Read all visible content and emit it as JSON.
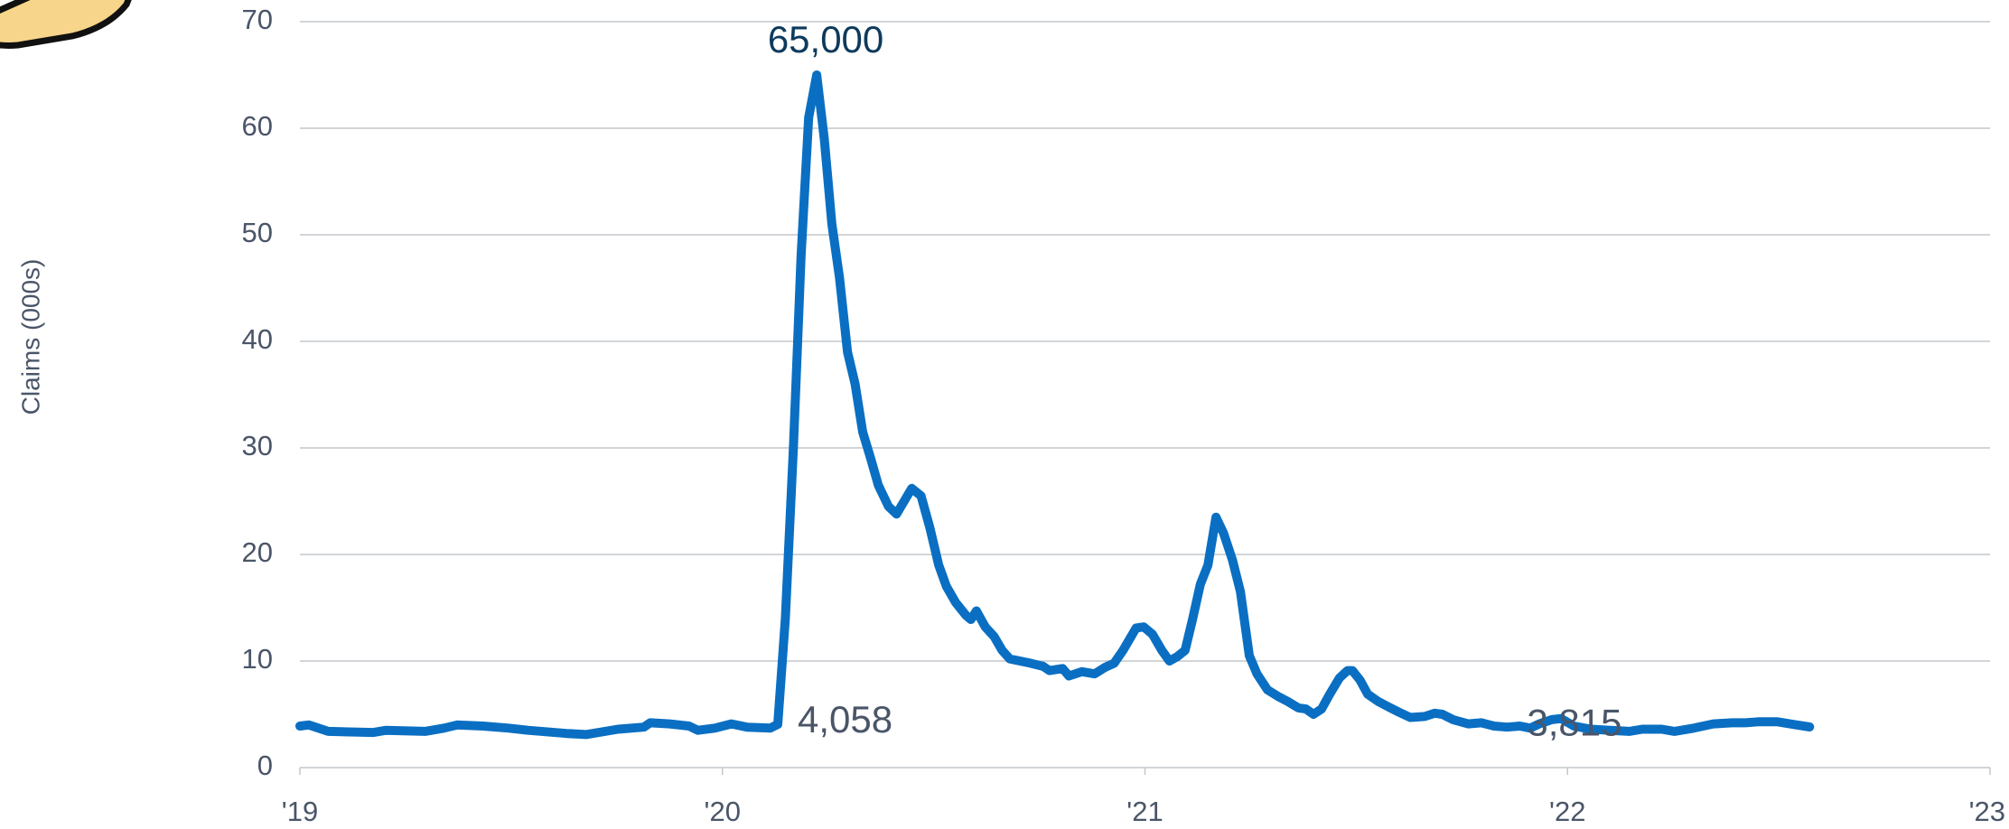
{
  "chart_data": {
    "type": "line",
    "ylabel": "Claims (000s)",
    "xlim": [
      2019,
      2023
    ],
    "xticks": [
      {
        "value": 2019,
        "label": "'19"
      },
      {
        "value": 2020,
        "label": "'20"
      },
      {
        "value": 2021,
        "label": "'21"
      },
      {
        "value": 2022,
        "label": "'22"
      },
      {
        "value": 2023,
        "label": "'23"
      }
    ],
    "ylim": [
      0,
      70
    ],
    "yticks": [
      0,
      10,
      20,
      30,
      40,
      50,
      60,
      70
    ],
    "grid": true,
    "x": [
      2019.0,
      2019.021,
      2019.067,
      2019.174,
      2019.204,
      2019.296,
      2019.341,
      2019.372,
      2019.433,
      2019.494,
      2019.54,
      2019.631,
      2019.677,
      2019.753,
      2019.814,
      2019.829,
      2019.875,
      2019.921,
      2019.942,
      2019.982,
      2020.021,
      2020.058,
      2020.113,
      2020.131,
      2020.149,
      2020.168,
      2020.186,
      2020.204,
      2020.223,
      2020.241,
      2020.259,
      2020.277,
      2020.296,
      2020.314,
      2020.332,
      2020.351,
      2020.369,
      2020.393,
      2020.412,
      2020.43,
      2020.448,
      2020.47,
      2020.491,
      2020.512,
      2020.53,
      2020.552,
      2020.576,
      2020.588,
      2020.601,
      2020.622,
      2020.643,
      2020.662,
      2020.68,
      2020.729,
      2020.759,
      2020.774,
      2020.805,
      2020.82,
      2020.851,
      2020.881,
      2020.905,
      2020.927,
      2020.948,
      2020.979,
      2020.997,
      2021.018,
      2021.04,
      2021.058,
      2021.076,
      2021.095,
      2021.113,
      2021.131,
      2021.149,
      2021.168,
      2021.186,
      2021.207,
      2021.226,
      2021.247,
      2021.265,
      2021.29,
      2021.314,
      2021.338,
      2021.363,
      2021.381,
      2021.399,
      2021.418,
      2021.436,
      2021.46,
      2021.479,
      2021.491,
      2021.509,
      2021.527,
      2021.552,
      2021.576,
      2021.601,
      2021.628,
      2021.662,
      2021.686,
      2021.704,
      2021.729,
      2021.765,
      2021.796,
      2021.826,
      2021.857,
      2021.887,
      2021.912,
      2021.933,
      2021.963,
      2021.985,
      2022.015,
      2022.055,
      2022.101,
      2022.146,
      2022.177,
      2022.223,
      2022.253,
      2022.299,
      2022.345,
      2022.39,
      2022.421,
      2022.451,
      2022.497,
      2022.543,
      2022.573
    ],
    "series": [
      {
        "color": "#0a6fc2",
        "values": [
          3.9,
          4.0,
          3.4,
          3.3,
          3.5,
          3.4,
          3.7,
          4.0,
          3.9,
          3.7,
          3.5,
          3.2,
          3.1,
          3.6,
          3.8,
          4.2,
          4.1,
          3.9,
          3.5,
          3.7,
          4.1,
          3.8,
          3.7,
          4.058,
          14,
          30,
          48,
          61,
          65,
          59,
          51,
          46,
          39,
          36,
          31.5,
          29,
          26.5,
          24.5,
          23.8,
          25,
          26.2,
          25.5,
          22.5,
          19,
          17,
          15.5,
          14.3,
          13.9,
          14.7,
          13.2,
          12.3,
          11,
          10.2,
          9.8,
          9.5,
          9.1,
          9.3,
          8.6,
          9.0,
          8.8,
          9.4,
          9.8,
          11,
          13.1,
          13.2,
          12.5,
          11,
          10,
          10.4,
          11,
          14,
          17.2,
          19,
          23.5,
          22,
          19.5,
          16.5,
          10.5,
          8.8,
          7.3,
          6.7,
          6.2,
          5.6,
          5.5,
          5.0,
          5.5,
          6.8,
          8.4,
          9.1,
          9.1,
          8.2,
          6.9,
          6.2,
          5.7,
          5.2,
          4.7,
          4.8,
          5.1,
          5.0,
          4.5,
          4.1,
          4.2,
          3.9,
          3.8,
          3.9,
          3.7,
          4.1,
          4.5,
          4.6,
          3.9,
          3.6,
          3.5,
          3.4,
          3.6,
          3.6,
          3.4,
          3.7,
          4.1,
          4.2,
          4.2,
          4.3,
          4.3,
          4.0,
          3.815
        ],
        "value_labels": [
          null,
          null,
          null,
          null,
          null,
          null,
          null,
          null,
          null,
          null,
          null,
          null,
          null,
          null,
          null,
          null,
          null,
          null,
          null,
          null,
          null,
          null,
          null,
          "4,058",
          null,
          null,
          null,
          null,
          "65,000",
          null,
          null,
          null,
          null,
          null,
          null,
          null,
          null,
          null,
          null,
          null,
          null,
          null,
          null,
          null,
          null,
          null,
          null,
          null,
          null,
          null,
          null,
          null,
          null,
          null,
          null,
          null,
          null,
          null,
          null,
          null,
          null,
          null,
          null,
          null,
          null,
          null,
          null,
          null,
          null,
          null,
          null,
          null,
          null,
          null,
          null,
          null,
          null,
          null,
          null,
          null,
          null,
          null,
          null,
          null,
          null,
          null,
          null,
          null,
          null,
          null,
          null,
          null,
          null,
          null,
          null,
          null,
          null,
          null,
          null,
          null,
          null,
          null,
          null,
          "3,815"
        ]
      }
    ]
  }
}
